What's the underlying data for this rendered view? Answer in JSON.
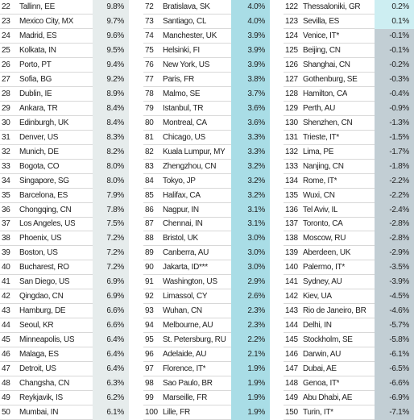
{
  "table": {
    "columns": [
      {
        "rows": [
          [
            22,
            "Tallinn, EE",
            "9.8%"
          ],
          [
            23,
            "Mexico City, MX",
            "9.7%"
          ],
          [
            24,
            "Madrid, ES",
            "9.6%"
          ],
          [
            25,
            "Kolkata, IN",
            "9.5%"
          ],
          [
            26,
            "Porto, PT",
            "9.4%"
          ],
          [
            27,
            "Sofia, BG",
            "9.2%"
          ],
          [
            28,
            "Dublin, IE",
            "8.9%"
          ],
          [
            29,
            "Ankara, TR",
            "8.4%"
          ],
          [
            30,
            "Edinburgh, UK",
            "8.4%"
          ],
          [
            31,
            "Denver, US",
            "8.3%"
          ],
          [
            32,
            "Munich, DE",
            "8.2%"
          ],
          [
            33,
            "Bogota, CO",
            "8.0%"
          ],
          [
            34,
            "Singapore, SG",
            "8.0%"
          ],
          [
            35,
            "Barcelona, ES",
            "7.9%"
          ],
          [
            36,
            "Chongqing, CN",
            "7.8%"
          ],
          [
            37,
            "Los Angeles, US",
            "7.5%"
          ],
          [
            38,
            "Phoenix, US",
            "7.2%"
          ],
          [
            39,
            "Boston, US",
            "7.2%"
          ],
          [
            40,
            "Bucharest, RO",
            "7.2%"
          ],
          [
            41,
            "San Diego, US",
            "6.9%"
          ],
          [
            42,
            "Qingdao, CN",
            "6.9%"
          ],
          [
            43,
            "Hamburg, DE",
            "6.6%"
          ],
          [
            44,
            "Seoul, KR",
            "6.6%"
          ],
          [
            45,
            "Minneapolis, US",
            "6.4%"
          ],
          [
            46,
            "Malaga, ES",
            "6.4%"
          ],
          [
            47,
            "Detroit, US",
            "6.4%"
          ],
          [
            48,
            "Changsha, CN",
            "6.3%"
          ],
          [
            49,
            "Reykjavik, IS",
            "6.2%"
          ],
          [
            50,
            "Mumbai, IN",
            "6.1%"
          ]
        ]
      },
      {
        "rows": [
          [
            72,
            "Bratislava, SK",
            "4.0%"
          ],
          [
            73,
            "Santiago, CL",
            "4.0%"
          ],
          [
            74,
            "Manchester, UK",
            "3.9%"
          ],
          [
            75,
            "Helsinki, FI",
            "3.9%"
          ],
          [
            76,
            "New York, US",
            "3.9%"
          ],
          [
            77,
            "Paris, FR",
            "3.8%"
          ],
          [
            78,
            "Malmo, SE",
            "3.7%"
          ],
          [
            79,
            "Istanbul, TR",
            "3.6%"
          ],
          [
            80,
            "Montreal, CA",
            "3.6%"
          ],
          [
            81,
            "Chicago, US",
            "3.3%"
          ],
          [
            82,
            "Kuala Lumpur, MY",
            "3.3%"
          ],
          [
            83,
            "Zhengzhou, CN",
            "3.2%"
          ],
          [
            84,
            "Tokyo, JP",
            "3.2%"
          ],
          [
            85,
            "Halifax, CA",
            "3.2%"
          ],
          [
            86,
            "Nagpur, IN",
            "3.1%"
          ],
          [
            87,
            "Chennai, IN",
            "3.1%"
          ],
          [
            88,
            "Bristol, UK",
            "3.0%"
          ],
          [
            89,
            "Canberra, AU",
            "3.0%"
          ],
          [
            90,
            "Jakarta, ID***",
            "3.0%"
          ],
          [
            91,
            "Washington, US",
            "2.9%"
          ],
          [
            92,
            "Limassol, CY",
            "2.6%"
          ],
          [
            93,
            "Wuhan, CN",
            "2.3%"
          ],
          [
            94,
            "Melbourne, AU",
            "2.3%"
          ],
          [
            95,
            "St. Petersburg, RU",
            "2.2%"
          ],
          [
            96,
            "Adelaide, AU",
            "2.1%"
          ],
          [
            97,
            "Florence, IT*",
            "1.9%"
          ],
          [
            98,
            "Sao Paulo, BR",
            "1.9%"
          ],
          [
            99,
            "Marseille, FR",
            "1.9%"
          ],
          [
            100,
            "Lille, FR",
            "1.9%"
          ]
        ]
      },
      {
        "rows": [
          [
            122,
            "Thessaloniki, GR",
            "0.2%"
          ],
          [
            123,
            "Sevilla, ES",
            "0.1%"
          ],
          [
            124,
            "Venice, IT*",
            "-0.1%"
          ],
          [
            125,
            "Beijing, CN",
            "-0.1%"
          ],
          [
            126,
            "Shanghai, CN",
            "-0.2%"
          ],
          [
            127,
            "Gothenburg, SE",
            "-0.3%"
          ],
          [
            128,
            "Hamilton, CA",
            "-0.4%"
          ],
          [
            129,
            "Perth, AU",
            "-0.9%"
          ],
          [
            130,
            "Shenzhen, CN",
            "-1.3%"
          ],
          [
            131,
            "Trieste, IT*",
            "-1.5%"
          ],
          [
            132,
            "Lima, PE",
            "-1.7%"
          ],
          [
            133,
            "Nanjing, CN",
            "-1.8%"
          ],
          [
            134,
            "Rome, IT*",
            "-2.2%"
          ],
          [
            135,
            "Wuxi, CN",
            "-2.2%"
          ],
          [
            136,
            "Tel Aviv, IL",
            "-2.4%"
          ],
          [
            137,
            "Toronto, CA",
            "-2.8%"
          ],
          [
            138,
            "Moscow, RU",
            "-2.8%"
          ],
          [
            139,
            "Aberdeen, UK",
            "-2.9%"
          ],
          [
            140,
            "Palermo, IT*",
            "-3.5%"
          ],
          [
            141,
            "Sydney, AU",
            "-3.9%"
          ],
          [
            142,
            "Kiev, UA",
            "-4.5%"
          ],
          [
            143,
            "Rio de Janeiro, BR",
            "-4.6%"
          ],
          [
            144,
            "Delhi, IN",
            "-5.7%"
          ],
          [
            145,
            "Stockholm, SE",
            "-5.8%"
          ],
          [
            146,
            "Darwin, AU",
            "-6.1%"
          ],
          [
            147,
            "Dubai, AE",
            "-6.5%"
          ],
          [
            148,
            "Genoa, IT*",
            "-6.6%"
          ],
          [
            149,
            "Abu Dhabi, AE",
            "-6.9%"
          ],
          [
            150,
            "Turin, IT*",
            "-7.1%"
          ]
        ]
      }
    ]
  }
}
